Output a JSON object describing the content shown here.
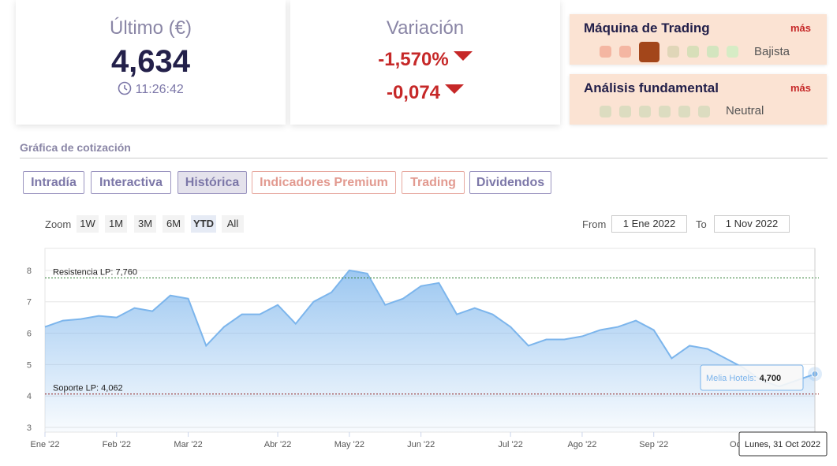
{
  "quote": {
    "last_title": "Último (€)",
    "last_value": "4,634",
    "time": "11:26:42",
    "change_title": "Variación",
    "change_pct": "-1,570%",
    "change_abs": "-0,074"
  },
  "panels": [
    {
      "title": "Máquina de Trading",
      "more": "más",
      "verdict": "Bajista"
    },
    {
      "title": "Análisis fundamental",
      "more": "más",
      "verdict": "Neutral"
    }
  ],
  "section_title": "Gráfica de cotización",
  "tabs": [
    "Intradía",
    "Interactiva",
    "Histórica",
    "Indicadores Premium",
    "Trading",
    "Dividendos"
  ],
  "zoom": {
    "label": "Zoom",
    "buttons": [
      "1W",
      "1M",
      "3M",
      "6M",
      "YTD",
      "All"
    ],
    "from_label": "From",
    "from": "1 Ene 2022",
    "to_label": "To",
    "to": "1 Nov 2022"
  },
  "chart_data": {
    "type": "area",
    "categories": [
      "Ene '22",
      null,
      null,
      null,
      "Feb '22",
      null,
      null,
      null,
      "Mar '22",
      null,
      null,
      null,
      null,
      "Abr '22",
      null,
      null,
      null,
      "May '22",
      null,
      null,
      null,
      "Jun '22",
      null,
      null,
      null,
      null,
      "Jul '22",
      null,
      null,
      null,
      "Ago '22",
      null,
      null,
      null,
      "Sep '22",
      null,
      null,
      null,
      null,
      "Oct '22",
      null,
      null,
      null,
      null
    ],
    "series": [
      {
        "name": "Melia Hotels",
        "color": "#7cb5ec",
        "values": [
          6.2,
          6.4,
          6.45,
          6.55,
          6.5,
          6.8,
          6.7,
          7.2,
          7.1,
          5.6,
          6.2,
          6.6,
          6.6,
          6.9,
          6.3,
          7.0,
          7.3,
          8.0,
          7.9,
          6.9,
          7.1,
          7.5,
          7.6,
          6.6,
          6.8,
          6.6,
          6.2,
          5.6,
          5.8,
          5.8,
          5.9,
          6.1,
          6.2,
          6.4,
          6.1,
          5.2,
          5.6,
          5.5,
          5.2,
          4.9,
          4.5,
          4.3,
          4.5,
          4.7
        ]
      }
    ],
    "ylim": [
      2.85,
      8.7
    ],
    "yticks": [
      3,
      4,
      5,
      6,
      7,
      8
    ],
    "grid": true,
    "reference_lines": [
      {
        "label": "Resistencia LP: 7,760",
        "value": 7.76,
        "color": "#2e7d32"
      },
      {
        "label": "Soporte LP: 4,062",
        "value": 4.062,
        "color": "#8b1a1a"
      }
    ],
    "tooltip": {
      "series": "Melia Hotels:",
      "value": "4,700",
      "date": "Lunes, 31 Oct 2022"
    }
  }
}
